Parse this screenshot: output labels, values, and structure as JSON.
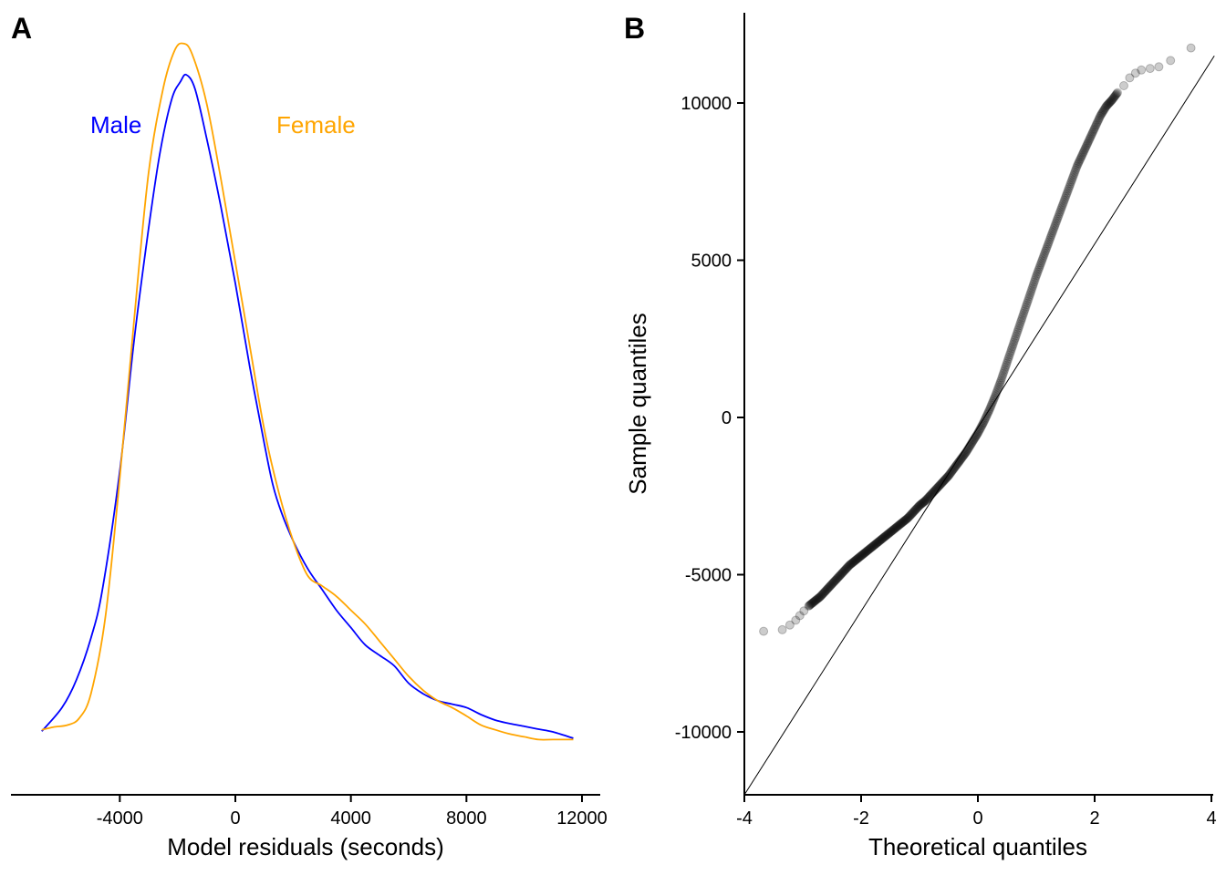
{
  "chart_data": [
    {
      "panel": "A",
      "type": "line",
      "title": "",
      "xlabel": "Model residuals (seconds)",
      "ylabel": "",
      "xlim": [
        -7800,
        12600
      ],
      "ylim": [
        0,
        1.0
      ],
      "x_ticks": [
        -4000,
        0,
        4000,
        8000,
        12000
      ],
      "x_tick_labels": [
        "-4000",
        "0",
        "4000",
        "8000",
        "12000"
      ],
      "y_axis_shown": false,
      "grid": false,
      "legend": "inline-labels",
      "series": [
        {
          "name": "Male",
          "color": "#0000ff",
          "x": [
            -6700,
            -6000,
            -5500,
            -5000,
            -4600,
            -4000,
            -3500,
            -3000,
            -2600,
            -2200,
            -1900,
            -1700,
            -1400,
            -1000,
            -500,
            0,
            500,
            1000,
            1300,
            1600,
            2000,
            2500,
            3000,
            3500,
            4000,
            4500,
            5000,
            5500,
            6000,
            6500,
            7000,
            7500,
            8000,
            8500,
            9000,
            9500,
            10000,
            10500,
            11000,
            11700
          ],
          "y": [
            0.056,
            0.09,
            0.13,
            0.19,
            0.26,
            0.43,
            0.62,
            0.78,
            0.89,
            0.965,
            0.99,
            1.0,
            0.98,
            0.91,
            0.81,
            0.7,
            0.58,
            0.47,
            0.41,
            0.37,
            0.33,
            0.29,
            0.26,
            0.23,
            0.205,
            0.18,
            0.165,
            0.15,
            0.125,
            0.11,
            0.1,
            0.095,
            0.09,
            0.08,
            0.072,
            0.067,
            0.063,
            0.059,
            0.055,
            0.046
          ]
        },
        {
          "name": "Female",
          "color": "#ffa500",
          "x": [
            -6700,
            -6300,
            -5800,
            -5400,
            -5000,
            -4500,
            -4000,
            -3500,
            -3000,
            -2500,
            -2100,
            -1800,
            -1500,
            -1000,
            -500,
            0,
            500,
            1000,
            1500,
            2000,
            2500,
            3000,
            3500,
            4000,
            4500,
            5000,
            5500,
            6000,
            6500,
            7000,
            7500,
            8000,
            8500,
            9000,
            9500,
            10000,
            10500,
            11000,
            11700
          ],
          "y": [
            0.058,
            0.062,
            0.065,
            0.075,
            0.11,
            0.22,
            0.42,
            0.65,
            0.86,
            0.98,
            1.035,
            1.045,
            1.03,
            0.96,
            0.85,
            0.73,
            0.61,
            0.49,
            0.4,
            0.33,
            0.28,
            0.265,
            0.25,
            0.23,
            0.21,
            0.185,
            0.16,
            0.135,
            0.115,
            0.1,
            0.09,
            0.078,
            0.065,
            0.058,
            0.052,
            0.048,
            0.044,
            0.044,
            0.044
          ]
        }
      ],
      "annotations": [
        {
          "text": "Male",
          "color": "#0000ff"
        },
        {
          "text": "Female",
          "color": "#ffa500"
        }
      ]
    },
    {
      "panel": "B",
      "type": "scatter",
      "title": "",
      "xlabel": "Theoretical quantiles",
      "ylabel": "Sample quantiles",
      "xlim": [
        -4,
        4
      ],
      "ylim": [
        -12000,
        12600
      ],
      "x_ticks": [
        -4,
        -2,
        0,
        2,
        4
      ],
      "x_tick_labels": [
        "-4",
        "-2",
        "0",
        "2",
        "4"
      ],
      "y_ticks": [
        -10000,
        -5000,
        0,
        5000,
        10000
      ],
      "y_tick_labels": [
        "-10000",
        "-5000",
        "0",
        "5000",
        "10000"
      ],
      "grid": false,
      "point_color": "#000000",
      "point_opacity": 0.2,
      "reference_line": {
        "x": [
          -4,
          4.05
        ],
        "y": [
          -12000,
          11500
        ],
        "color": "#000000"
      },
      "x": [
        -3.67,
        -3.35,
        -3.22,
        -3.12,
        -3.05,
        -2.98,
        -2.9,
        -2.8,
        -2.7,
        -2.6,
        -2.5,
        -2.4,
        -2.3,
        -2.2,
        -2.1,
        -2.0,
        -1.9,
        -1.8,
        -1.7,
        -1.6,
        -1.5,
        -1.4,
        -1.3,
        -1.2,
        -1.1,
        -1.0,
        -0.9,
        -0.8,
        -0.7,
        -0.6,
        -0.5,
        -0.4,
        -0.3,
        -0.2,
        -0.1,
        0.0,
        0.1,
        0.2,
        0.3,
        0.4,
        0.5,
        0.6,
        0.7,
        0.8,
        0.9,
        1.0,
        1.1,
        1.2,
        1.3,
        1.4,
        1.5,
        1.6,
        1.7,
        1.8,
        1.9,
        2.0,
        2.1,
        2.2,
        2.3,
        2.4,
        2.5,
        2.6,
        2.7,
        2.8,
        2.95,
        3.1,
        3.3,
        3.65
      ],
      "y": [
        -6800,
        -6750,
        -6600,
        -6450,
        -6300,
        -6150,
        -6000,
        -5850,
        -5700,
        -5500,
        -5300,
        -5100,
        -4900,
        -4700,
        -4550,
        -4400,
        -4250,
        -4100,
        -3950,
        -3800,
        -3650,
        -3500,
        -3350,
        -3200,
        -3000,
        -2800,
        -2650,
        -2450,
        -2250,
        -2050,
        -1850,
        -1600,
        -1350,
        -1100,
        -800,
        -500,
        -150,
        250,
        700,
        1200,
        1750,
        2300,
        2850,
        3400,
        3950,
        4500,
        5000,
        5500,
        6000,
        6500,
        7000,
        7500,
        8000,
        8400,
        8800,
        9200,
        9600,
        9900,
        10100,
        10350,
        10550,
        10800,
        10950,
        11050,
        11100,
        11150,
        11350,
        11750
      ]
    }
  ],
  "panel_labels": [
    "A",
    "B"
  ]
}
